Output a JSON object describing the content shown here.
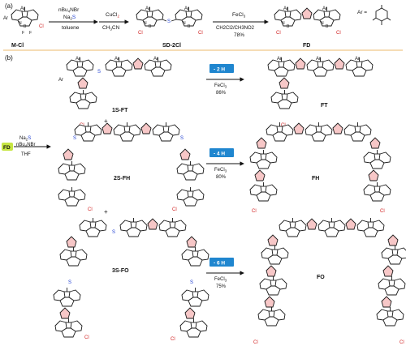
{
  "panel_a": {
    "label": "(a)",
    "step1": {
      "reagent1": "nBu",
      "reagent1_sub": "4",
      "reagent1_end": "NBr",
      "reagent2": "Na",
      "reagent2_sub": "2",
      "reagent2_S": "S",
      "solvent": "toluene"
    },
    "step2": {
      "reagent": "CuCl",
      "reagent_sub": "2",
      "solvent": "CH",
      "solvent_sub": "3",
      "solvent_end": "CN"
    },
    "step3": {
      "reagent": "FeCl",
      "reagent_sub": "3",
      "solvent": "CH2Cl2/CH3NO2",
      "yield": "78%"
    },
    "compounds": {
      "c1": "M-Cl",
      "c2": "SD-2Cl",
      "c3": "FD"
    },
    "ar_label": "Ar ="
  },
  "panel_b": {
    "label": "(b)",
    "start": "FD",
    "conditions": {
      "line1": "Na",
      "line1_sub": "2",
      "line1_S": "S",
      "line2": "nBu",
      "line2_sub": "4",
      "line2_end": "NBr",
      "line3": "THF"
    },
    "rows": [
      {
        "reactant": "1S-FT",
        "badge": "- 2 H",
        "reagent": "FeCl",
        "reagent_sub": "3",
        "yield": "86%",
        "product": "FT"
      },
      {
        "reactant": "2S-FH",
        "badge": "- 4 H",
        "reagent": "FeCl",
        "reagent_sub": "3",
        "yield": "80%",
        "product": "FH"
      },
      {
        "reactant": "3S-FO",
        "badge": "- 6 H",
        "reagent": "FeCl",
        "reagent_sub": "3",
        "yield": "75%",
        "product": "FO"
      }
    ],
    "plus": "+"
  },
  "atoms": {
    "ar": "Ar",
    "n": "N",
    "b": "B",
    "f": "F",
    "cl": "Cl",
    "s": "S",
    "fb": "F",
    "nb": "N"
  },
  "colors": {
    "thiophene": "#f7c7c7",
    "chlorine": "#d11f1f",
    "sulfur": "#1f3fd1",
    "badge": "#1f86cf",
    "divider": "#e8a23a"
  }
}
